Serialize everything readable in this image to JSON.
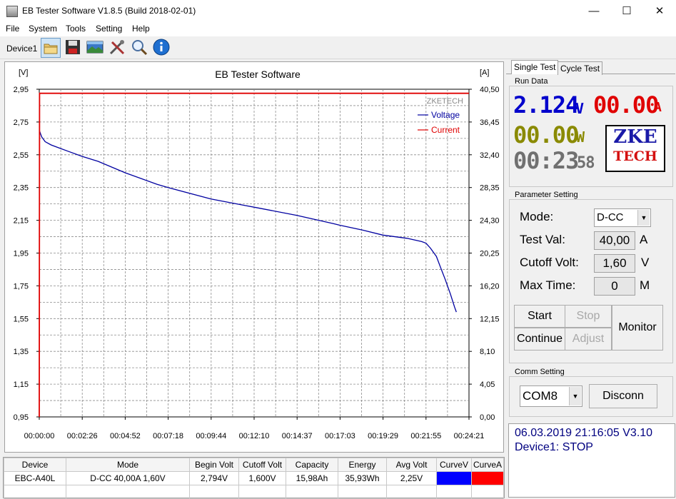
{
  "window": {
    "title": "EB Tester Software V1.8.5 (Build 2018-02-01)",
    "minimize": "—",
    "maximize": "☐",
    "close": "✕"
  },
  "menu": [
    "File",
    "System",
    "Tools",
    "Setting",
    "Help"
  ],
  "toolbar": {
    "device_label": "Device1",
    "icons": [
      "open-folder-icon",
      "save-disk-icon",
      "image-icon",
      "tools-icon",
      "magnifier-icon",
      "info-icon"
    ]
  },
  "chart_data": {
    "type": "line",
    "title": "EB Tester Software",
    "watermark": "ZKETECH",
    "y_left_unit": "[V]",
    "y_right_unit": "[A]",
    "y_left_ticks": [
      "2,95",
      "2,75",
      "2,55",
      "2,35",
      "2,15",
      "1,95",
      "1,75",
      "1,55",
      "1,35",
      "1,15",
      "0,95"
    ],
    "y_right_ticks": [
      "40,50",
      "36,45",
      "32,40",
      "28,35",
      "24,30",
      "20,25",
      "16,20",
      "12,15",
      "8,10",
      "4,05",
      "0,00"
    ],
    "x_ticks": [
      "00:00:00",
      "00:02:26",
      "00:04:52",
      "00:07:18",
      "00:09:44",
      "00:12:10",
      "00:14:37",
      "00:17:03",
      "00:19:29",
      "00:21:55",
      "00:24:21"
    ],
    "x_range_s": [
      0,
      1461
    ],
    "y_left_range": [
      0.95,
      2.95
    ],
    "y_right_range": [
      0,
      40.5
    ],
    "grid": true,
    "legend_position": "top-right",
    "series": [
      {
        "name": "Voltage",
        "axis": "left",
        "color": "#0000a0",
        "x_s": [
          0,
          8,
          20,
          40,
          70,
          100,
          146,
          200,
          292,
          400,
          438,
          584,
          700,
          730,
          876,
          1000,
          1022,
          1100,
          1168,
          1250,
          1300,
          1315,
          1330,
          1350,
          1365,
          1380,
          1390,
          1398,
          1405,
          1412,
          1418
        ],
        "values": [
          2.7,
          2.66,
          2.63,
          2.61,
          2.59,
          2.57,
          2.54,
          2.51,
          2.44,
          2.37,
          2.35,
          2.28,
          2.24,
          2.23,
          2.18,
          2.13,
          2.12,
          2.09,
          2.06,
          2.04,
          2.02,
          2.01,
          1.98,
          1.93,
          1.86,
          1.79,
          1.74,
          1.7,
          1.66,
          1.62,
          1.59
        ]
      },
      {
        "name": "Current",
        "axis": "right",
        "color": "#e00000",
        "x_s": [
          0,
          1,
          1461
        ],
        "values": [
          0,
          40.0,
          40.0
        ]
      }
    ]
  },
  "table": {
    "headers": [
      "Device",
      "Mode",
      "Begin Volt",
      "Cutoff Volt",
      "Capacity",
      "Energy",
      "Avg Volt",
      "CurveV",
      "CurveA"
    ],
    "rows": [
      {
        "device": "EBC-A40L",
        "mode": "D-CC  40,00A  1,60V",
        "begin_volt": "2,794V",
        "cutoff_volt": "1,600V",
        "capacity": "15,98Ah",
        "energy": "35,93Wh",
        "avg_volt": "2,25V",
        "curve_v_color": "#0000ff",
        "curve_a_color": "#ff0000"
      }
    ]
  },
  "tabs": [
    "Single Test",
    "Cycle Test"
  ],
  "run_data": {
    "label": "Run Data",
    "voltage": "2.124",
    "voltage_unit": "V",
    "current": "00.00",
    "current_unit": "A",
    "power": "00.00",
    "power_unit": "W",
    "time": "00:23",
    "time_seconds": "58",
    "logo_top": "ZKE",
    "logo_bottom": "TECH",
    "colors": {
      "voltage": "#0000cc",
      "current": "#e00000",
      "power": "#8a8a00",
      "time": "#707070"
    }
  },
  "params": {
    "label": "Parameter Setting",
    "mode_label": "Mode:",
    "mode_value": "D-CC",
    "test_val_label": "Test Val:",
    "test_val_value": "40,00",
    "test_val_unit": "A",
    "cutoff_label": "Cutoff Volt:",
    "cutoff_value": "1,60",
    "cutoff_unit": "V",
    "max_time_label": "Max Time:",
    "max_time_value": "0",
    "max_time_unit": "M"
  },
  "controls": {
    "start": "Start",
    "stop": "Stop",
    "continue": "Continue",
    "adjust": "Adjust",
    "monitor": "Monitor"
  },
  "comm": {
    "label": "Comm Setting",
    "port": "COM8",
    "disconnect": "Disconn"
  },
  "status": {
    "line1": "06.03.2019 21:16:05  V3.10",
    "line2": "Device1: STOP"
  }
}
